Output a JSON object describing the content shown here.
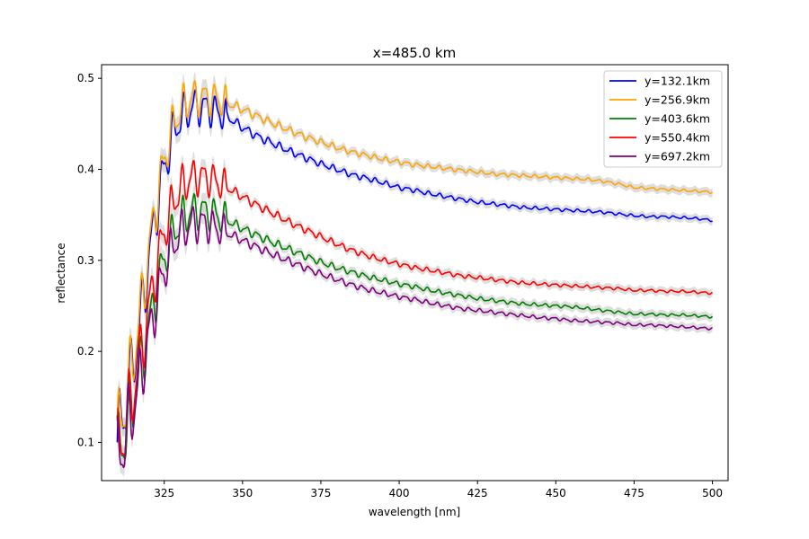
{
  "chart_data": {
    "type": "line",
    "title": "x=485.0 km",
    "xlabel": "wavelength [nm]",
    "ylabel": "reflectance",
    "xlim": [
      305,
      505
    ],
    "ylim": [
      0.058,
      0.515
    ],
    "xticks": [
      325,
      350,
      375,
      400,
      425,
      450,
      475,
      500
    ],
    "yticks": [
      0.1,
      0.2,
      0.3,
      0.4,
      0.5
    ],
    "legend_position": "top-right",
    "uncertainty_band_color": "#d3d3d3",
    "series": [
      {
        "name": "y=132.1km",
        "color": "#0000ff",
        "smooth": [
          [
            310,
            0.1
          ],
          [
            312,
            0.13
          ],
          [
            314,
            0.165
          ],
          [
            316,
            0.205
          ],
          [
            318,
            0.25
          ],
          [
            320,
            0.3
          ],
          [
            322,
            0.345
          ],
          [
            324,
            0.385
          ],
          [
            326,
            0.415
          ],
          [
            328,
            0.44
          ],
          [
            330,
            0.455
          ],
          [
            332,
            0.463
          ],
          [
            334,
            0.468
          ],
          [
            336,
            0.469
          ],
          [
            338,
            0.468
          ],
          [
            340,
            0.466
          ],
          [
            342,
            0.463
          ],
          [
            345,
            0.458
          ],
          [
            350,
            0.446
          ],
          [
            355,
            0.436
          ],
          [
            360,
            0.428
          ],
          [
            365,
            0.42
          ],
          [
            370,
            0.413
          ],
          [
            375,
            0.406
          ],
          [
            380,
            0.4
          ],
          [
            385,
            0.394
          ],
          [
            390,
            0.39
          ],
          [
            395,
            0.385
          ],
          [
            400,
            0.38
          ],
          [
            405,
            0.377
          ],
          [
            410,
            0.373
          ],
          [
            415,
            0.37
          ],
          [
            420,
            0.367
          ],
          [
            425,
            0.364
          ],
          [
            430,
            0.362
          ],
          [
            435,
            0.36
          ],
          [
            440,
            0.358
          ],
          [
            445,
            0.357
          ],
          [
            450,
            0.356
          ],
          [
            455,
            0.355
          ],
          [
            460,
            0.354
          ],
          [
            465,
            0.353
          ],
          [
            470,
            0.351
          ],
          [
            475,
            0.349
          ],
          [
            480,
            0.348
          ],
          [
            485,
            0.348
          ],
          [
            490,
            0.347
          ],
          [
            495,
            0.346
          ],
          [
            500,
            0.344
          ]
        ]
      },
      {
        "name": "y=256.9km",
        "color": "#ffa500",
        "smooth": [
          [
            310,
            0.103
          ],
          [
            312,
            0.135
          ],
          [
            314,
            0.17
          ],
          [
            316,
            0.212
          ],
          [
            318,
            0.258
          ],
          [
            320,
            0.308
          ],
          [
            322,
            0.352
          ],
          [
            324,
            0.393
          ],
          [
            326,
            0.425
          ],
          [
            328,
            0.45
          ],
          [
            330,
            0.465
          ],
          [
            332,
            0.474
          ],
          [
            334,
            0.478
          ],
          [
            336,
            0.479
          ],
          [
            338,
            0.479
          ],
          [
            340,
            0.478
          ],
          [
            342,
            0.476
          ],
          [
            345,
            0.473
          ],
          [
            350,
            0.466
          ],
          [
            355,
            0.458
          ],
          [
            360,
            0.45
          ],
          [
            365,
            0.443
          ],
          [
            370,
            0.436
          ],
          [
            375,
            0.43
          ],
          [
            380,
            0.424
          ],
          [
            385,
            0.419
          ],
          [
            390,
            0.415
          ],
          [
            395,
            0.411
          ],
          [
            400,
            0.408
          ],
          [
            405,
            0.405
          ],
          [
            410,
            0.403
          ],
          [
            415,
            0.401
          ],
          [
            420,
            0.399
          ],
          [
            425,
            0.397
          ],
          [
            430,
            0.395
          ],
          [
            435,
            0.394
          ],
          [
            440,
            0.393
          ],
          [
            445,
            0.392
          ],
          [
            450,
            0.391
          ],
          [
            455,
            0.39
          ],
          [
            460,
            0.389
          ],
          [
            465,
            0.387
          ],
          [
            470,
            0.384
          ],
          [
            475,
            0.38
          ],
          [
            480,
            0.379
          ],
          [
            485,
            0.378
          ],
          [
            490,
            0.377
          ],
          [
            495,
            0.376
          ],
          [
            500,
            0.375
          ]
        ]
      },
      {
        "name": "y=403.6km",
        "color": "#008000",
        "smooth": [
          [
            310,
            0.083
          ],
          [
            312,
            0.105
          ],
          [
            314,
            0.13
          ],
          [
            316,
            0.158
          ],
          [
            318,
            0.19
          ],
          [
            320,
            0.225
          ],
          [
            322,
            0.258
          ],
          [
            324,
            0.288
          ],
          [
            326,
            0.312
          ],
          [
            328,
            0.33
          ],
          [
            330,
            0.343
          ],
          [
            332,
            0.35
          ],
          [
            334,
            0.354
          ],
          [
            336,
            0.355
          ],
          [
            338,
            0.354
          ],
          [
            340,
            0.352
          ],
          [
            342,
            0.349
          ],
          [
            345,
            0.344
          ],
          [
            350,
            0.335
          ],
          [
            355,
            0.327
          ],
          [
            360,
            0.319
          ],
          [
            365,
            0.312
          ],
          [
            370,
            0.305
          ],
          [
            375,
            0.298
          ],
          [
            380,
            0.292
          ],
          [
            385,
            0.287
          ],
          [
            390,
            0.282
          ],
          [
            395,
            0.278
          ],
          [
            400,
            0.274
          ],
          [
            405,
            0.271
          ],
          [
            410,
            0.267
          ],
          [
            415,
            0.264
          ],
          [
            420,
            0.261
          ],
          [
            425,
            0.258
          ],
          [
            430,
            0.256
          ],
          [
            435,
            0.254
          ],
          [
            440,
            0.252
          ],
          [
            445,
            0.251
          ],
          [
            450,
            0.25
          ],
          [
            455,
            0.249
          ],
          [
            460,
            0.247
          ],
          [
            465,
            0.245
          ],
          [
            470,
            0.243
          ],
          [
            475,
            0.241
          ],
          [
            480,
            0.241
          ],
          [
            485,
            0.24
          ],
          [
            490,
            0.24
          ],
          [
            495,
            0.239
          ],
          [
            500,
            0.238
          ]
        ]
      },
      {
        "name": "y=550.4km",
        "color": "#ff0000",
        "smooth": [
          [
            310,
            0.087
          ],
          [
            312,
            0.11
          ],
          [
            314,
            0.138
          ],
          [
            316,
            0.17
          ],
          [
            318,
            0.207
          ],
          [
            320,
            0.245
          ],
          [
            322,
            0.283
          ],
          [
            324,
            0.317
          ],
          [
            326,
            0.344
          ],
          [
            328,
            0.364
          ],
          [
            330,
            0.378
          ],
          [
            332,
            0.386
          ],
          [
            334,
            0.391
          ],
          [
            336,
            0.392
          ],
          [
            338,
            0.391
          ],
          [
            340,
            0.389
          ],
          [
            342,
            0.386
          ],
          [
            345,
            0.38
          ],
          [
            350,
            0.37
          ],
          [
            355,
            0.36
          ],
          [
            360,
            0.351
          ],
          [
            365,
            0.342
          ],
          [
            370,
            0.334
          ],
          [
            375,
            0.326
          ],
          [
            380,
            0.318
          ],
          [
            385,
            0.311
          ],
          [
            390,
            0.305
          ],
          [
            395,
            0.3
          ],
          [
            400,
            0.296
          ],
          [
            405,
            0.292
          ],
          [
            410,
            0.289
          ],
          [
            415,
            0.286
          ],
          [
            420,
            0.283
          ],
          [
            425,
            0.281
          ],
          [
            430,
            0.279
          ],
          [
            435,
            0.277
          ],
          [
            440,
            0.275
          ],
          [
            445,
            0.274
          ],
          [
            450,
            0.273
          ],
          [
            455,
            0.272
          ],
          [
            460,
            0.271
          ],
          [
            465,
            0.27
          ],
          [
            470,
            0.269
          ],
          [
            475,
            0.267
          ],
          [
            480,
            0.267
          ],
          [
            485,
            0.266
          ],
          [
            490,
            0.266
          ],
          [
            495,
            0.265
          ],
          [
            500,
            0.264
          ]
        ]
      },
      {
        "name": "y=697.2km",
        "color": "#800080",
        "smooth": [
          [
            310,
            0.079
          ],
          [
            312,
            0.1
          ],
          [
            314,
            0.124
          ],
          [
            316,
            0.151
          ],
          [
            318,
            0.182
          ],
          [
            320,
            0.215
          ],
          [
            322,
            0.248
          ],
          [
            324,
            0.277
          ],
          [
            326,
            0.3
          ],
          [
            328,
            0.318
          ],
          [
            330,
            0.33
          ],
          [
            332,
            0.336
          ],
          [
            334,
            0.34
          ],
          [
            336,
            0.341
          ],
          [
            338,
            0.34
          ],
          [
            340,
            0.338
          ],
          [
            342,
            0.335
          ],
          [
            345,
            0.33
          ],
          [
            350,
            0.322
          ],
          [
            355,
            0.314
          ],
          [
            360,
            0.306
          ],
          [
            365,
            0.299
          ],
          [
            370,
            0.292
          ],
          [
            375,
            0.285
          ],
          [
            380,
            0.279
          ],
          [
            385,
            0.273
          ],
          [
            390,
            0.268
          ],
          [
            395,
            0.264
          ],
          [
            400,
            0.26
          ],
          [
            405,
            0.257
          ],
          [
            410,
            0.253
          ],
          [
            415,
            0.25
          ],
          [
            420,
            0.247
          ],
          [
            425,
            0.245
          ],
          [
            430,
            0.243
          ],
          [
            435,
            0.241
          ],
          [
            440,
            0.239
          ],
          [
            445,
            0.237
          ],
          [
            450,
            0.236
          ],
          [
            455,
            0.234
          ],
          [
            460,
            0.233
          ],
          [
            465,
            0.232
          ],
          [
            470,
            0.231
          ],
          [
            475,
            0.229
          ],
          [
            480,
            0.229
          ],
          [
            485,
            0.228
          ],
          [
            490,
            0.227
          ],
          [
            495,
            0.226
          ],
          [
            500,
            0.225
          ]
        ]
      }
    ]
  }
}
